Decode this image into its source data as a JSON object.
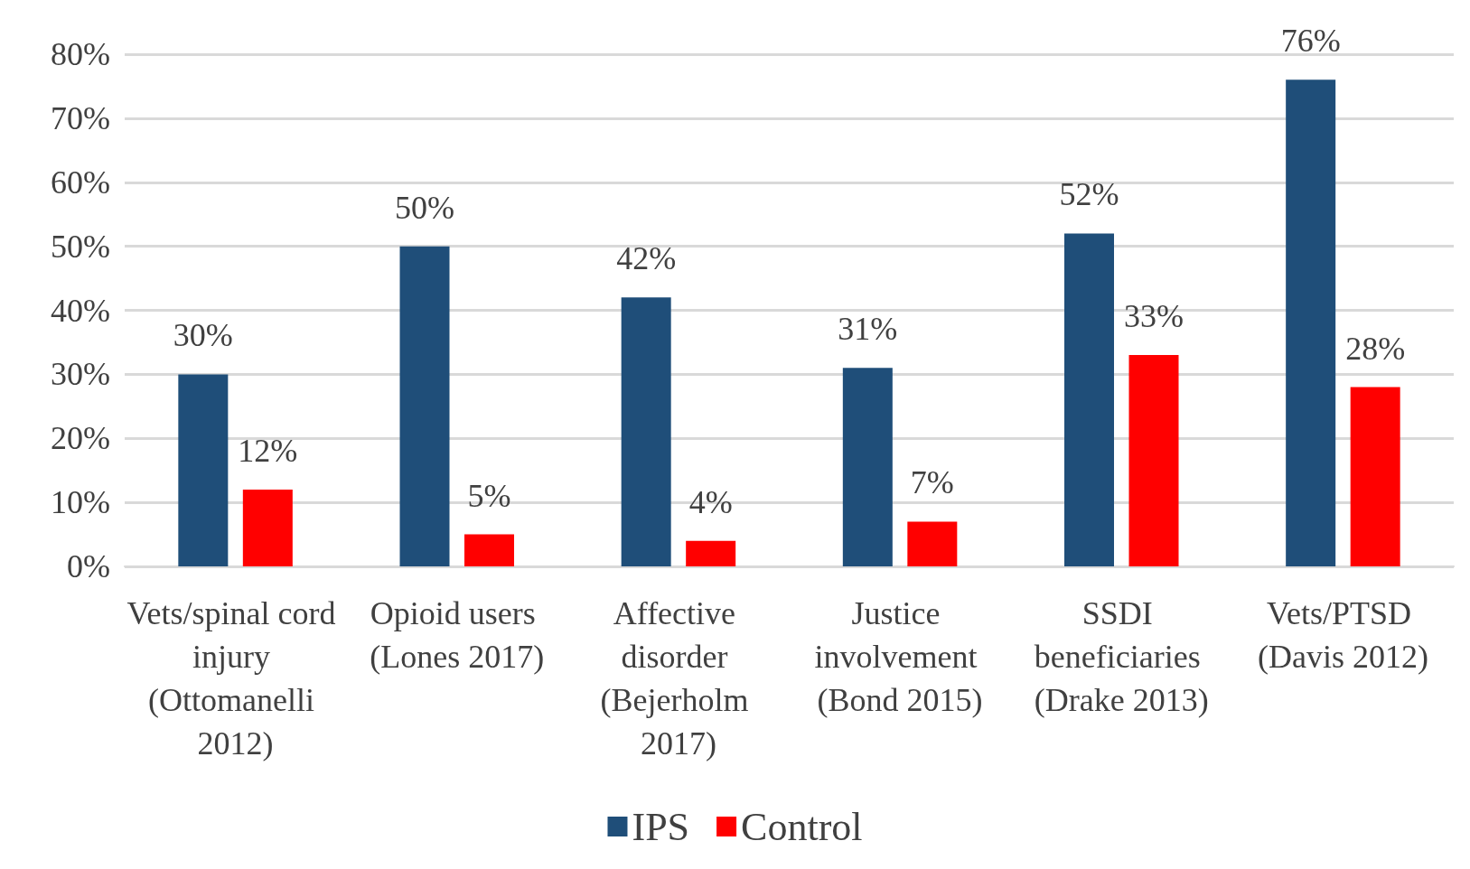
{
  "chart_data": {
    "type": "bar",
    "categories": [
      "Vets/spinal cord injury (Ottomanelli 2012)",
      "Opioid users (Lones 2017)",
      "Affective disorder (Bejerholm 2017)",
      "Justice involvement (Bond 2015)",
      "SSDI beneficiaries (Drake 2013)",
      "Vets/PTSD (Davis 2012)"
    ],
    "series": [
      {
        "name": "IPS",
        "color": "#1f4e79",
        "values": [
          30,
          50,
          42,
          31,
          52,
          76
        ],
        "value_labels": [
          "30%",
          "50%",
          "42%",
          "31%",
          "52%",
          "76%"
        ]
      },
      {
        "name": "Control",
        "color": "#ff0000",
        "values": [
          12,
          5,
          4,
          7,
          33,
          28
        ],
        "value_labels": [
          "12%",
          "5%",
          "4%",
          "7%",
          "33%",
          "28%"
        ]
      }
    ],
    "ylim": [
      0,
      80
    ],
    "yticks": [
      {
        "value": 0,
        "label": "0%"
      },
      {
        "value": 10,
        "label": "10%"
      },
      {
        "value": 20,
        "label": "20%"
      },
      {
        "value": 30,
        "label": "30%"
      },
      {
        "value": 40,
        "label": "40%"
      },
      {
        "value": 50,
        "label": "50%"
      },
      {
        "value": 60,
        "label": "60%"
      },
      {
        "value": 70,
        "label": "70%"
      },
      {
        "value": 80,
        "label": "80%"
      }
    ],
    "grid": "y",
    "legend": "bottom"
  }
}
